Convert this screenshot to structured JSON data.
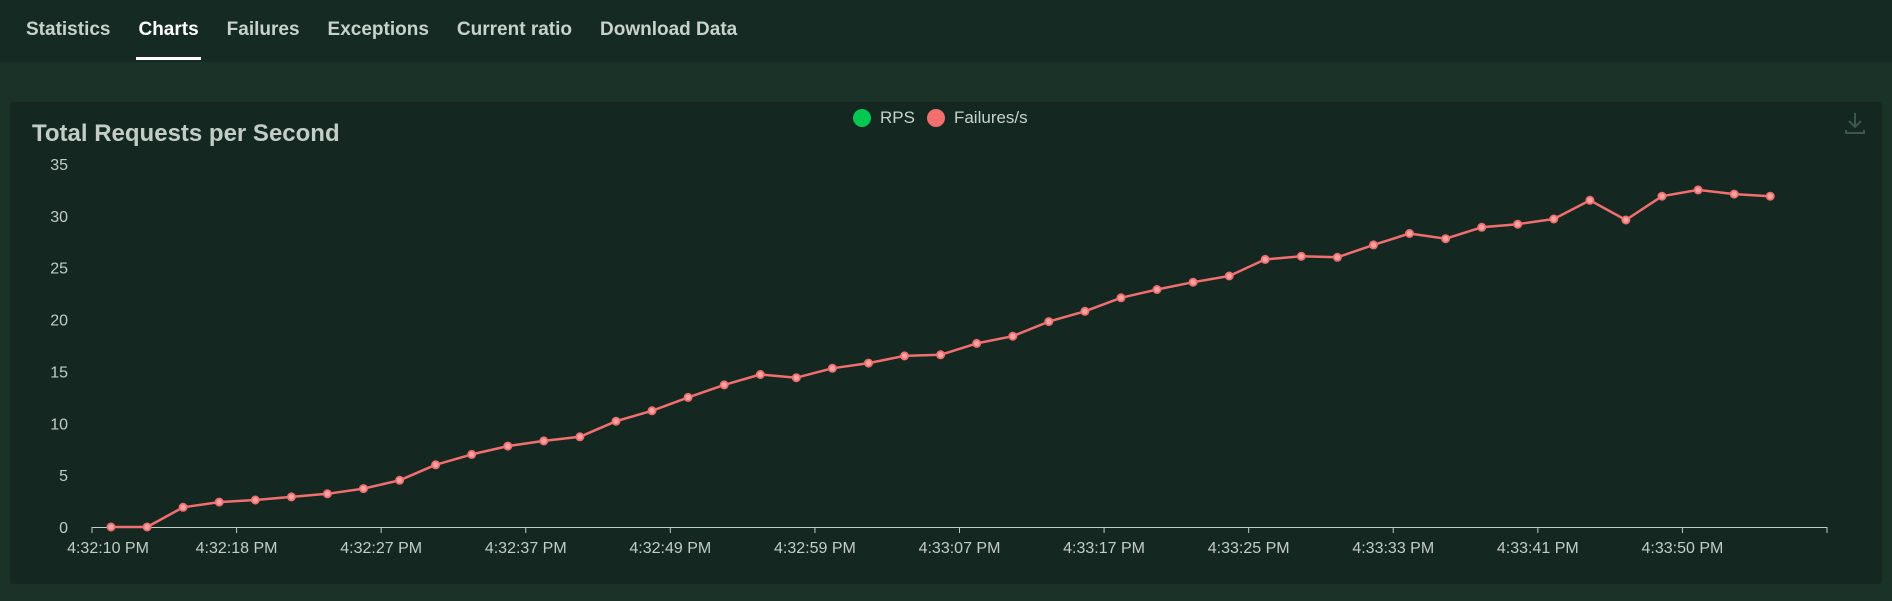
{
  "tabs": [
    {
      "label": "Statistics",
      "active": false
    },
    {
      "label": "Charts",
      "active": true
    },
    {
      "label": "Failures",
      "active": false
    },
    {
      "label": "Exceptions",
      "active": false
    },
    {
      "label": "Current ratio",
      "active": false
    },
    {
      "label": "Download Data",
      "active": false
    }
  ],
  "colors": {
    "rps": "#00c853",
    "failures": "#f26f6f",
    "axis": "#c3ccc7"
  },
  "download_icon": "download-icon",
  "chart_data": {
    "type": "line",
    "title": "Total Requests per Second",
    "legend": [
      {
        "name": "RPS",
        "color": "#00c853"
      },
      {
        "name": "Failures/s",
        "color": "#f26f6f"
      }
    ],
    "legend_position": "top-center",
    "ylim": [
      0,
      35
    ],
    "yticks": [
      0,
      5,
      10,
      15,
      20,
      25,
      30,
      35
    ],
    "xtick_labels": [
      "4:32:10 PM",
      "4:32:18 PM",
      "4:32:27 PM",
      "4:32:37 PM",
      "4:32:49 PM",
      "4:32:59 PM",
      "4:33:07 PM",
      "4:33:17 PM",
      "4:33:25 PM",
      "4:33:33 PM",
      "4:33:41 PM",
      "4:33:50 PM"
    ],
    "grid": false,
    "series": [
      {
        "name": "Failures/s",
        "color": "#f26f6f",
        "values": [
          0,
          0,
          1.9,
          2.4,
          2.6,
          2.9,
          3.2,
          3.7,
          4.5,
          6.0,
          7.0,
          7.8,
          8.3,
          8.7,
          10.2,
          11.2,
          12.5,
          13.7,
          14.7,
          14.4,
          15.3,
          15.8,
          16.5,
          16.6,
          17.7,
          18.4,
          19.8,
          20.8,
          22.1,
          22.9,
          23.6,
          24.2,
          25.8,
          26.1,
          26.0,
          27.2,
          28.3,
          27.8,
          28.9,
          29.2,
          29.7,
          31.5,
          29.6,
          31.9,
          32.5,
          32.1,
          31.9
        ]
      }
    ]
  }
}
